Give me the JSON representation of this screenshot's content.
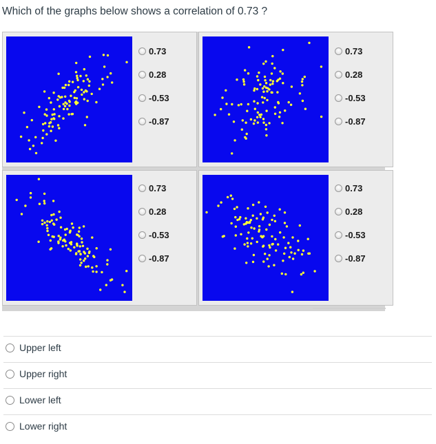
{
  "question": "Which of the graphs below shows a correlation of 0.73 ?",
  "colors": {
    "plot_bg": "#0808ee",
    "dot": "#ffff33"
  },
  "plots": [
    {
      "position": "upper-left",
      "target_correlation": 0.73,
      "options": [
        "0.73",
        "0.28",
        "-0.53",
        "-0.87"
      ]
    },
    {
      "position": "upper-right",
      "target_correlation": 0.28,
      "options": [
        "0.73",
        "0.28",
        "-0.53",
        "-0.87"
      ]
    },
    {
      "position": "lower-left",
      "target_correlation": -0.87,
      "options": [
        "0.73",
        "0.28",
        "-0.53",
        "-0.87"
      ]
    },
    {
      "position": "lower-right",
      "target_correlation": -0.53,
      "options": [
        "0.73",
        "0.28",
        "-0.53",
        "-0.87"
      ]
    }
  ],
  "answers": [
    "Upper left",
    "Upper right",
    "Lower left",
    "Lower right"
  ]
}
